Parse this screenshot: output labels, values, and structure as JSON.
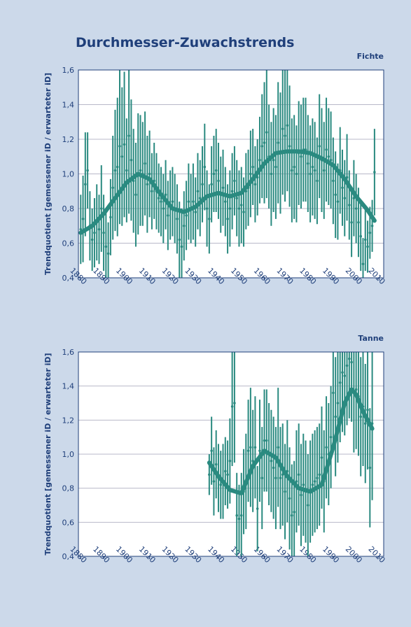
{
  "chart_data": [
    {
      "type": "line",
      "title": "Durchmesser-Zuwachstrends",
      "subtitle": "Fichte",
      "ylabel": "Trendquotient [gemessener iD / erwarteter iD]",
      "x": [
        1880,
        1881,
        1882,
        1883,
        1884,
        1885,
        1886,
        1887,
        1888,
        1889,
        1890,
        1891,
        1892,
        1893,
        1894,
        1895,
        1896,
        1897,
        1898,
        1899,
        1900,
        1901,
        1902,
        1903,
        1904,
        1905,
        1906,
        1907,
        1908,
        1909,
        1910,
        1911,
        1912,
        1913,
        1914,
        1915,
        1916,
        1917,
        1918,
        1919,
        1920,
        1921,
        1922,
        1923,
        1924,
        1925,
        1926,
        1927,
        1928,
        1929,
        1930,
        1931,
        1932,
        1933,
        1934,
        1935,
        1936,
        1937,
        1938,
        1939,
        1940,
        1941,
        1942,
        1943,
        1944,
        1945,
        1946,
        1947,
        1948,
        1949,
        1950,
        1951,
        1952,
        1953,
        1954,
        1955,
        1956,
        1957,
        1958,
        1959,
        1960,
        1961,
        1962,
        1963,
        1964,
        1965,
        1966,
        1967,
        1968,
        1969,
        1970,
        1971,
        1972,
        1973,
        1974,
        1975,
        1976,
        1977,
        1978,
        1979,
        1980,
        1981,
        1982,
        1983,
        1984,
        1985,
        1986,
        1987,
        1988,
        1989,
        1990,
        1991,
        1992,
        1993,
        1994,
        1995,
        1996,
        1997,
        1998,
        1999,
        2000,
        2001,
        2002,
        2003,
        2004,
        2005,
        2006,
        2007,
        2008
      ],
      "series": [
        {
          "color": "#2a8a80",
          "values": [
            0.68,
            0.74,
            0.94,
            1.02,
            0.7,
            0.62,
            0.66,
            0.72,
            0.68,
            0.8,
            0.66,
            0.58,
            0.54,
            0.75,
            0.92,
            1.02,
            1.04,
            1.16,
            1.1,
            1.17,
            1.02,
            1.22,
            1.08,
            0.96,
            0.88,
            1.0,
            1.02,
            1.0,
            1.06,
            0.94,
            1.0,
            0.9,
            0.96,
            0.9,
            0.86,
            0.84,
            0.8,
            0.88,
            0.76,
            0.82,
            0.84,
            0.8,
            0.74,
            0.62,
            0.58,
            0.7,
            0.76,
            0.84,
            0.8,
            0.84,
            0.78,
            0.9,
            0.86,
            0.94,
            1.04,
            0.8,
            0.74,
            0.94,
            1.0,
            1.02,
            0.96,
            0.88,
            0.92,
            0.84,
            0.74,
            0.8,
            0.9,
            0.96,
            0.86,
            0.8,
            0.82,
            0.78,
            0.9,
            0.92,
            1.0,
            1.04,
            0.94,
            0.98,
            1.08,
            1.16,
            1.18,
            1.24,
            1.1,
            1.0,
            1.08,
            1.04,
            1.18,
            1.12,
            1.26,
            1.22,
            1.28,
            1.16,
            1.02,
            1.04,
            1.0,
            1.12,
            1.1,
            1.14,
            1.14,
            1.06,
            1.0,
            1.04,
            1.02,
            0.96,
            1.16,
            1.08,
            1.02,
            1.14,
            1.1,
            1.08,
            0.96,
            0.88,
            0.84,
            1.02,
            0.92,
            0.86,
            0.98,
            0.82,
            0.72,
            0.86,
            0.8,
            0.72,
            0.64,
            0.48,
            0.62,
            0.58,
            0.66,
            0.7,
            1.01
          ],
          "errors": [
            0.2,
            0.25,
            0.3,
            0.22,
            0.2,
            0.18,
            0.2,
            0.22,
            0.2,
            0.25,
            0.22,
            0.2,
            0.18,
            0.22,
            0.3,
            0.35,
            0.4,
            0.45,
            0.4,
            0.42,
            0.3,
            0.45,
            0.35,
            0.3,
            0.3,
            0.35,
            0.32,
            0.3,
            0.3,
            0.28,
            0.25,
            0.22,
            0.22,
            0.22,
            0.2,
            0.2,
            0.2,
            0.2,
            0.2,
            0.2,
            0.2,
            0.2,
            0.2,
            0.22,
            0.22,
            0.2,
            0.2,
            0.22,
            0.2,
            0.22,
            0.2,
            0.22,
            0.22,
            0.22,
            0.25,
            0.22,
            0.2,
            0.22,
            0.22,
            0.24,
            0.22,
            0.22,
            0.22,
            0.2,
            0.2,
            0.22,
            0.22,
            0.2,
            0.22,
            0.22,
            0.22,
            0.2,
            0.22,
            0.22,
            0.25,
            0.22,
            0.22,
            0.22,
            0.25,
            0.3,
            0.35,
            0.38,
            0.3,
            0.3,
            0.3,
            0.3,
            0.35,
            0.35,
            0.38,
            0.38,
            0.38,
            0.35,
            0.3,
            0.3,
            0.28,
            0.3,
            0.3,
            0.3,
            0.3,
            0.28,
            0.28,
            0.28,
            0.28,
            0.25,
            0.3,
            0.3,
            0.28,
            0.3,
            0.28,
            0.28,
            0.25,
            0.25,
            0.22,
            0.25,
            0.22,
            0.22,
            0.25,
            0.2,
            0.2,
            0.22,
            0.2,
            0.2,
            0.2,
            0.15,
            0.18,
            0.15,
            0.15,
            0.15,
            0.25
          ]
        },
        {
          "color": "#2a8a80",
          "x": [
            1880,
            1885,
            1890,
            1895,
            1900,
            1905,
            1910,
            1915,
            1920,
            1925,
            1930,
            1935,
            1940,
            1945,
            1950,
            1955,
            1960,
            1965,
            1970,
            1975,
            1980,
            1985,
            1990,
            1995,
            2000,
            2005,
            2008
          ],
          "values": [
            0.66,
            0.7,
            0.77,
            0.86,
            0.95,
            1.0,
            0.97,
            0.88,
            0.8,
            0.78,
            0.81,
            0.87,
            0.89,
            0.87,
            0.89,
            0.97,
            1.06,
            1.12,
            1.13,
            1.13,
            1.12,
            1.09,
            1.05,
            0.97,
            0.87,
            0.79,
            0.73
          ]
        }
      ],
      "xlim": [
        1879,
        2012
      ],
      "xticks": [
        1880,
        1890,
        1900,
        1910,
        1920,
        1930,
        1940,
        1950,
        1960,
        1970,
        1980,
        1990,
        2000,
        2010
      ],
      "ylim": [
        0.4,
        1.6
      ],
      "yticks": [
        {
          "value": 0.4,
          "label": "0,4"
        },
        {
          "value": 0.6,
          "label": "0,6"
        },
        {
          "value": 0.8,
          "label": "0,8"
        },
        {
          "value": 1.0,
          "label": "1,0"
        },
        {
          "value": 1.2,
          "label": "1,2"
        },
        {
          "value": 1.4,
          "label": "1,4"
        },
        {
          "value": 1.6,
          "label": "1,6"
        }
      ],
      "grid": true
    },
    {
      "type": "line",
      "subtitle": "Tanne",
      "ylabel": "Trendquotient [gemessener iD / erwarteter iD]",
      "x": [
        1936,
        1937,
        1938,
        1939,
        1940,
        1941,
        1942,
        1943,
        1944,
        1945,
        1946,
        1947,
        1948,
        1949,
        1950,
        1951,
        1952,
        1953,
        1954,
        1955,
        1956,
        1957,
        1958,
        1959,
        1960,
        1961,
        1962,
        1963,
        1964,
        1965,
        1966,
        1967,
        1968,
        1969,
        1970,
        1971,
        1972,
        1973,
        1974,
        1975,
        1976,
        1977,
        1978,
        1979,
        1980,
        1981,
        1982,
        1983,
        1984,
        1985,
        1986,
        1987,
        1988,
        1989,
        1990,
        1991,
        1992,
        1993,
        1994,
        1995,
        1996,
        1997,
        1998,
        1999,
        2000,
        2001,
        2002,
        2003,
        2004,
        2005,
        2006,
        2007
      ],
      "series": [
        {
          "color": "#2a8a80",
          "values": [
            0.88,
            1.02,
            0.84,
            0.94,
            0.86,
            0.82,
            0.84,
            0.9,
            0.88,
            0.96,
            1.28,
            1.3,
            0.64,
            0.62,
            0.64,
            0.78,
            0.84,
            1.02,
            1.04,
            0.96,
            1.04,
            0.68,
            1.02,
            0.86,
            1.08,
            1.08,
            1.0,
            0.96,
            0.92,
            0.86,
            1.04,
            0.86,
            0.88,
            0.78,
            0.9,
            0.74,
            0.64,
            0.66,
            0.84,
            0.88,
            0.76,
            0.82,
            0.78,
            0.7,
            0.78,
            0.82,
            0.84,
            0.86,
            0.88,
            0.98,
            0.84,
            1.04,
            1.0,
            1.1,
            1.36,
            1.22,
            1.3,
            1.42,
            1.48,
            1.46,
            1.52,
            1.56,
            1.54,
            1.36,
            1.38,
            1.34,
            1.22,
            1.28,
            1.18,
            1.26,
            0.92,
            1.18
          ],
          "errors": [
            0.12,
            0.2,
            0.2,
            0.2,
            0.2,
            0.2,
            0.22,
            0.2,
            0.2,
            0.25,
            0.35,
            0.35,
            0.25,
            0.2,
            0.25,
            0.25,
            0.28,
            0.3,
            0.35,
            0.3,
            0.3,
            0.25,
            0.3,
            0.3,
            0.3,
            0.3,
            0.3,
            0.3,
            0.3,
            0.3,
            0.35,
            0.3,
            0.3,
            0.28,
            0.3,
            0.3,
            0.3,
            0.3,
            0.3,
            0.3,
            0.3,
            0.3,
            0.3,
            0.3,
            0.3,
            0.3,
            0.3,
            0.3,
            0.3,
            0.3,
            0.3,
            0.3,
            0.3,
            0.3,
            0.35,
            0.35,
            0.35,
            0.35,
            0.35,
            0.35,
            0.35,
            0.35,
            0.35,
            0.35,
            0.35,
            0.35,
            0.35,
            0.35,
            0.35,
            0.35,
            0.35,
            0.45
          ]
        },
        {
          "color": "#2a8a80",
          "x": [
            1936,
            1940,
            1945,
            1950,
            1955,
            1960,
            1965,
            1970,
            1975,
            1980,
            1985,
            1990,
            1995,
            1998,
            2000,
            2003,
            2007
          ],
          "values": [
            0.95,
            0.87,
            0.79,
            0.77,
            0.93,
            1.02,
            0.98,
            0.87,
            0.8,
            0.78,
            0.82,
            1.04,
            1.3,
            1.38,
            1.35,
            1.25,
            1.15
          ]
        }
      ],
      "xlim": [
        1879,
        2012
      ],
      "xticks": [
        1880,
        1890,
        1900,
        1910,
        1920,
        1930,
        1940,
        1950,
        1960,
        1970,
        1980,
        1990,
        2000,
        2010
      ],
      "ylim": [
        0.4,
        1.6
      ],
      "yticks": [
        {
          "value": 0.4,
          "label": "0,4"
        },
        {
          "value": 0.6,
          "label": "0,6"
        },
        {
          "value": 0.8,
          "label": "0,8"
        },
        {
          "value": 1.0,
          "label": "1,0"
        },
        {
          "value": 1.2,
          "label": "1,2"
        },
        {
          "value": 1.4,
          "label": "1,4"
        },
        {
          "value": 1.6,
          "label": "1,6"
        }
      ],
      "grid": true
    }
  ]
}
